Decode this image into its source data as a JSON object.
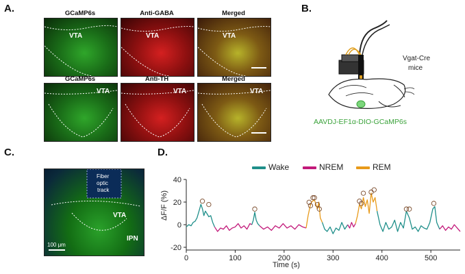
{
  "panels": {
    "a": "A.",
    "b": "B.",
    "c": "C.",
    "d": "D."
  },
  "panel_a": {
    "row1": {
      "titles": [
        "GCaMP6s",
        "Anti-GABA",
        "Merged"
      ]
    },
    "row2": {
      "titles": [
        "GCaMP6s",
        "Anti-TH",
        "Merged"
      ]
    },
    "region_label": "VTA"
  },
  "panel_b": {
    "mouse_label_line1": "Vgat-Cre",
    "mouse_label_line2": "mice",
    "virus_label": "AAVDJ-EF1α-DIO-GCaMP6s",
    "virus_color": "#3aa23a"
  },
  "panel_c": {
    "track_line1": "Fiber",
    "track_line2": "optic",
    "track_line3": "track",
    "region_vta": "VTA",
    "region_ipn": "IPN",
    "scale_bar": "100 μm"
  },
  "chart_data": {
    "type": "line",
    "title": "",
    "xlabel": "Time (s)",
    "ylabel": "ΔF/F (%)",
    "xlim": [
      0,
      560
    ],
    "ylim": [
      -20,
      40
    ],
    "xticks": [
      0,
      100,
      200,
      300,
      400,
      500
    ],
    "yticks": [
      -20,
      0,
      20,
      40
    ],
    "legend": [
      {
        "name": "Wake",
        "color": "#1f8f8a"
      },
      {
        "name": "NREM",
        "color": "#c2197a"
      },
      {
        "name": "REM",
        "color": "#e89a1a"
      }
    ],
    "segments": [
      {
        "state": "Wake",
        "x": [
          0,
          5,
          10,
          14,
          18,
          22,
          26,
          30,
          33,
          36,
          39,
          42,
          46,
          50,
          54,
          58
        ],
        "y": [
          -2,
          0,
          -1,
          2,
          3,
          6,
          12,
          18,
          14,
          8,
          12,
          10,
          7,
          8,
          2,
          -2
        ]
      },
      {
        "state": "NREM",
        "x": [
          58,
          64,
          70,
          76,
          82,
          88,
          94,
          100,
          106,
          112,
          118,
          124,
          130,
          134
        ],
        "y": [
          -2,
          -6,
          -3,
          -4,
          -1,
          -5,
          -3,
          -2,
          1,
          -3,
          -1,
          -4,
          1,
          0
        ]
      },
      {
        "state": "Wake",
        "x": [
          134,
          137,
          140,
          143,
          146,
          150
        ],
        "y": [
          0,
          4,
          11,
          4,
          1,
          -1
        ]
      },
      {
        "state": "NREM",
        "x": [
          150,
          158,
          166,
          174,
          182,
          190,
          198,
          206,
          214,
          222,
          230,
          238,
          245
        ],
        "y": [
          -1,
          -4,
          -2,
          -5,
          -1,
          -3,
          1,
          -3,
          -1,
          -4,
          0,
          -2,
          -3
        ]
      },
      {
        "state": "REM",
        "x": [
          245,
          249,
          253,
          256,
          259,
          262,
          265,
          268,
          271,
          274,
          278
        ],
        "y": [
          -3,
          8,
          16,
          20,
          21,
          22,
          18,
          14,
          20,
          6,
          2
        ]
      },
      {
        "state": "Wake",
        "x": [
          278,
          283,
          288,
          294,
          300,
          306,
          312,
          318,
          324,
          330
        ],
        "y": [
          2,
          -4,
          -6,
          -2,
          -8,
          -3,
          -5,
          2,
          -4,
          0
        ]
      },
      {
        "state": "NREM",
        "x": [
          330,
          334,
          338,
          342,
          346
        ],
        "y": [
          0,
          -3,
          2,
          -2,
          1
        ]
      },
      {
        "state": "REM",
        "x": [
          346,
          350,
          354,
          358,
          362,
          366,
          370,
          374,
          378,
          382,
          386,
          390
        ],
        "y": [
          1,
          8,
          18,
          14,
          24,
          16,
          22,
          10,
          28,
          20,
          24,
          12
        ]
      },
      {
        "state": "Wake",
        "x": [
          390,
          396,
          402,
          408,
          414,
          420,
          426,
          432,
          438,
          444,
          450,
          456,
          462,
          468,
          474,
          480,
          486,
          492,
          498,
          504,
          508,
          512,
          518
        ],
        "y": [
          12,
          0,
          -6,
          2,
          -4,
          -2,
          4,
          -6,
          2,
          -3,
          12,
          6,
          -4,
          -2,
          -6,
          -1,
          -3,
          -4,
          2,
          14,
          16,
          2,
          -4
        ]
      },
      {
        "state": "NREM",
        "x": [
          518,
          524,
          530,
          536,
          542,
          548,
          554,
          560
        ],
        "y": [
          -4,
          -1,
          -5,
          -2,
          -4,
          0,
          -3,
          -6
        ]
      }
    ],
    "peaks": [
      {
        "x": 33,
        "y": 19
      },
      {
        "x": 46,
        "y": 16
      },
      {
        "x": 140,
        "y": 12
      },
      {
        "x": 251,
        "y": 18
      },
      {
        "x": 254,
        "y": 15
      },
      {
        "x": 259,
        "y": 22
      },
      {
        "x": 262,
        "y": 22
      },
      {
        "x": 268,
        "y": 16
      },
      {
        "x": 272,
        "y": 12
      },
      {
        "x": 354,
        "y": 19
      },
      {
        "x": 358,
        "y": 17
      },
      {
        "x": 362,
        "y": 26
      },
      {
        "x": 378,
        "y": 27
      },
      {
        "x": 384,
        "y": 29
      },
      {
        "x": 450,
        "y": 12
      },
      {
        "x": 456,
        "y": 12
      },
      {
        "x": 506,
        "y": 17
      }
    ]
  }
}
